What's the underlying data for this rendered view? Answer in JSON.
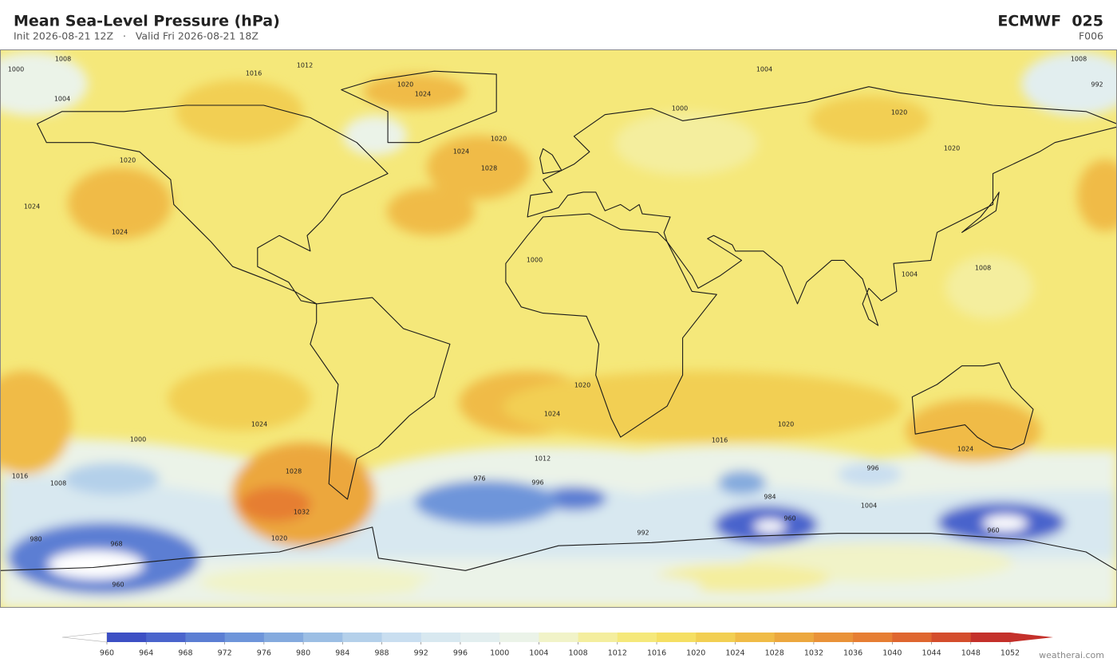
{
  "header": {
    "title": "Mean Sea-Level Pressure  (hPa)",
    "subtitle": "Init 2026-08-21 12Z   ·   Valid Fri 2026-08-21 18Z",
    "model": "ECMWF  025",
    "forecast_step": "F006"
  },
  "contour_labels": [
    1008,
    1000,
    1004,
    1012,
    1016,
    1020,
    1024,
    1020,
    1028,
    1024,
    1024,
    1020,
    1024,
    1000,
    1004,
    1020,
    1020,
    1008,
    992,
    1020,
    1016,
    1012,
    1024,
    1024,
    1020,
    1024,
    1028,
    1032,
    1020,
    1000,
    1008,
    1016,
    976,
    996,
    992,
    984,
    1004,
    996,
    968,
    960,
    960,
    960,
    980,
    1004,
    1008,
    1000
  ],
  "colorbar": {
    "levels": [
      960,
      964,
      968,
      972,
      976,
      980,
      984,
      988,
      992,
      996,
      1000,
      1004,
      1008,
      1012,
      1016,
      1020,
      1024,
      1028,
      1032,
      1036,
      1040,
      1044,
      1048,
      1052
    ],
    "colors": [
      "#3c4fc4",
      "#4a64cc",
      "#5b7ed3",
      "#6e95da",
      "#84aade",
      "#9cbee4",
      "#b4d0ea",
      "#c9def0",
      "#d8e8f0",
      "#e2eeef",
      "#ebf3e8",
      "#f1f3c8",
      "#f4ee9e",
      "#f5e87a",
      "#f5df62",
      "#f2cf52",
      "#f0bb46",
      "#eca73e",
      "#e99238",
      "#e67e33",
      "#df662f",
      "#d44d2c",
      "#c4302a"
    ],
    "under_color": "#ffffff",
    "over_color": "#c4302a"
  },
  "footer": {
    "credit": "weatherai.com"
  }
}
